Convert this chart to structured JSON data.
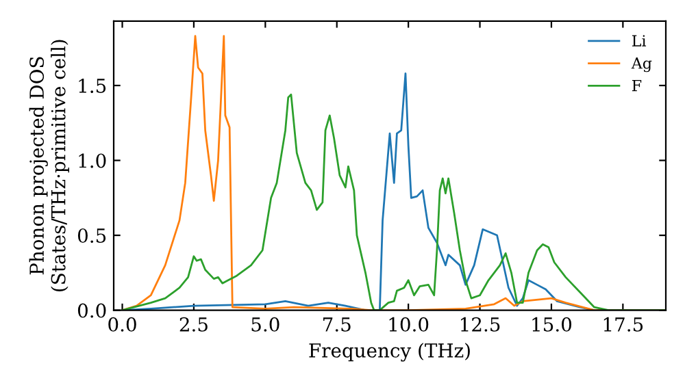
{
  "chart_data": {
    "type": "line",
    "xlabel": "Frequency (THz)",
    "ylabel": "Phonon projected DOS\n(States/THz·primitive cell)",
    "xlim": [
      -0.3,
      19
    ],
    "ylim": [
      0,
      1.93
    ],
    "xticks": [
      {
        "value": 0,
        "label": "0.0"
      },
      2.5,
      {
        "value": 5,
        "label": "5.0"
      },
      7.5,
      {
        "value": 10,
        "label": "10.0"
      },
      12.5,
      {
        "value": 15,
        "label": "15.0"
      },
      17.5
    ],
    "yticks": [
      {
        "value": 0,
        "label": "0.0"
      },
      0.5,
      {
        "value": 1,
        "label": "1.0"
      },
      1.5
    ],
    "grid": false,
    "legend": "top right",
    "marker": "none",
    "line_style": "solid",
    "series": [
      {
        "name": "Li",
        "color": "#1f77b4",
        "x": [
          0,
          1,
          2.5,
          5,
          5.7,
          6.5,
          7.2,
          7.8,
          8.5,
          9.0,
          9.1,
          9.35,
          9.5,
          9.6,
          9.75,
          9.9,
          10.0,
          10.1,
          10.3,
          10.5,
          10.7,
          11.0,
          11.3,
          11.4,
          11.8,
          12.0,
          12.3,
          12.6,
          13.1,
          13.5,
          13.8,
          14.0,
          14.2,
          14.5,
          14.8,
          15.2,
          16.0,
          16.5,
          19
        ],
        "values": [
          0,
          0.01,
          0.03,
          0.04,
          0.06,
          0.03,
          0.05,
          0.03,
          0,
          0,
          0.6,
          1.18,
          0.85,
          1.18,
          1.2,
          1.58,
          1.1,
          0.75,
          0.76,
          0.8,
          0.55,
          0.45,
          0.3,
          0.37,
          0.3,
          0.17,
          0.3,
          0.54,
          0.5,
          0.15,
          0.03,
          0.08,
          0.2,
          0.17,
          0.14,
          0.06,
          0.02,
          0,
          0
        ]
      },
      {
        "name": "Ag",
        "color": "#ff7f0e",
        "x": [
          0,
          0.5,
          1,
          1.5,
          2,
          2.2,
          2.4,
          2.55,
          2.65,
          2.8,
          2.9,
          3.1,
          3.2,
          3.35,
          3.55,
          3.6,
          3.75,
          3.85,
          5,
          6,
          8,
          8.7,
          10,
          12,
          13,
          13.4,
          13.7,
          14,
          15,
          15.5,
          16.5,
          19
        ],
        "values": [
          0,
          0.03,
          0.1,
          0.3,
          0.6,
          0.85,
          1.4,
          1.83,
          1.62,
          1.58,
          1.2,
          0.9,
          0.73,
          1.0,
          1.83,
          1.3,
          1.22,
          0.02,
          0.01,
          0.02,
          0.01,
          0,
          0,
          0.01,
          0.04,
          0.08,
          0.03,
          0.06,
          0.08,
          0.05,
          0,
          0
        ]
      },
      {
        "name": "F",
        "color": "#2ca02c",
        "x": [
          0,
          1,
          1.5,
          2,
          2.3,
          2.5,
          2.6,
          2.75,
          2.9,
          3.2,
          3.35,
          3.5,
          3.7,
          4,
          4.5,
          4.9,
          5.2,
          5.4,
          5.7,
          5.8,
          5.9,
          6.1,
          6.4,
          6.6,
          6.8,
          7,
          7.1,
          7.25,
          7.4,
          7.6,
          7.8,
          7.9,
          8.1,
          8.2,
          8.5,
          8.7,
          8.8,
          9,
          9.3,
          9.5,
          9.6,
          9.85,
          10,
          10.2,
          10.4,
          10.7,
          10.9,
          11,
          11.1,
          11.2,
          11.3,
          11.4,
          11.6,
          11.8,
          12,
          12.2,
          12.5,
          12.8,
          13,
          13.2,
          13.4,
          13.6,
          13.8,
          14,
          14.2,
          14.5,
          14.7,
          14.9,
          15.1,
          15.5,
          16,
          16.5,
          17,
          19
        ],
        "values": [
          0,
          0.05,
          0.08,
          0.15,
          0.22,
          0.36,
          0.33,
          0.34,
          0.27,
          0.21,
          0.22,
          0.18,
          0.2,
          0.23,
          0.3,
          0.4,
          0.75,
          0.85,
          1.2,
          1.42,
          1.44,
          1.05,
          0.85,
          0.8,
          0.67,
          0.72,
          1.2,
          1.3,
          1.15,
          0.9,
          0.82,
          0.96,
          0.8,
          0.5,
          0.25,
          0.05,
          0,
          0,
          0.05,
          0.06,
          0.13,
          0.15,
          0.2,
          0.1,
          0.16,
          0.17,
          0.1,
          0.4,
          0.8,
          0.88,
          0.78,
          0.88,
          0.65,
          0.4,
          0.2,
          0.08,
          0.1,
          0.2,
          0.25,
          0.3,
          0.38,
          0.25,
          0.05,
          0.05,
          0.25,
          0.4,
          0.44,
          0.42,
          0.32,
          0.22,
          0.12,
          0.02,
          0,
          0
        ]
      }
    ]
  }
}
